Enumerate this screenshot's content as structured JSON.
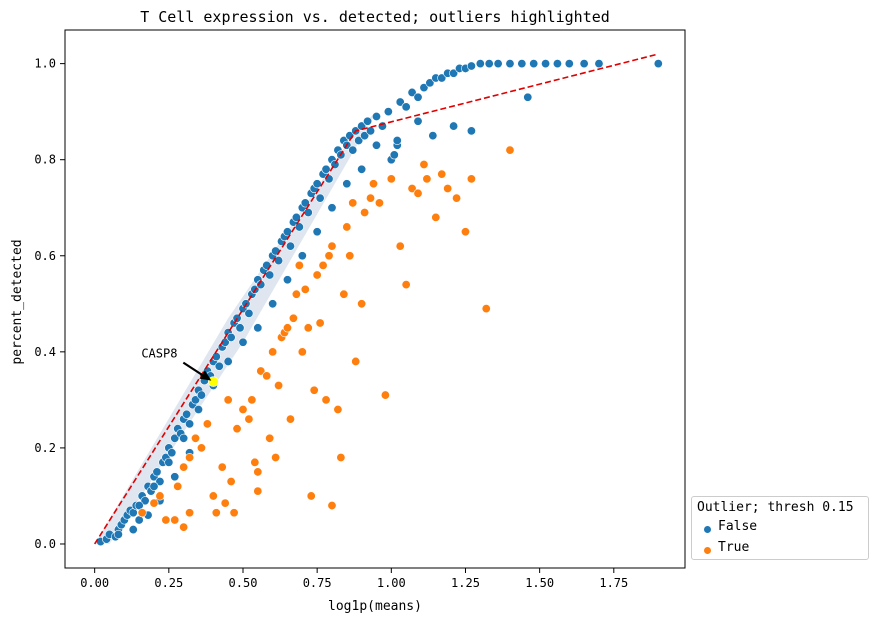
{
  "chart_data": {
    "type": "scatter",
    "title": "T Cell expression vs. detected; outliers highlighted",
    "xlabel": "log1p(means)",
    "ylabel": "percent_detected",
    "xlim": [
      -0.1,
      1.99
    ],
    "ylim": [
      -0.05,
      1.07
    ],
    "xticks": [
      0.0,
      0.25,
      0.5,
      0.75,
      1.0,
      1.25,
      1.5,
      1.75
    ],
    "xtick_labels": [
      "0.00",
      "0.25",
      "0.50",
      "0.75",
      "1.00",
      "1.25",
      "1.50",
      "1.75"
    ],
    "yticks": [
      0.0,
      0.2,
      0.4,
      0.6,
      0.8,
      1.0
    ],
    "ytick_labels": [
      "0.0",
      "0.2",
      "0.4",
      "0.6",
      "0.8",
      "1.0"
    ],
    "grid": false,
    "legend": {
      "title": "Outlier; thresh 0.15",
      "placement": "outside-bottom-right",
      "entries": [
        {
          "label": "False",
          "color": "#1f77b4"
        },
        {
          "label": "True",
          "color": "#ff7f0e"
        }
      ]
    },
    "series": [
      {
        "name": "False",
        "color": "#1f77b4",
        "points": [
          [
            0.02,
            0.005
          ],
          [
            0.04,
            0.01
          ],
          [
            0.05,
            0.02
          ],
          [
            0.07,
            0.015
          ],
          [
            0.08,
            0.03
          ],
          [
            0.09,
            0.04
          ],
          [
            0.1,
            0.05
          ],
          [
            0.11,
            0.06
          ],
          [
            0.12,
            0.07
          ],
          [
            0.13,
            0.065
          ],
          [
            0.14,
            0.08
          ],
          [
            0.15,
            0.05
          ],
          [
            0.16,
            0.1
          ],
          [
            0.17,
            0.09
          ],
          [
            0.18,
            0.12
          ],
          [
            0.19,
            0.11
          ],
          [
            0.2,
            0.14
          ],
          [
            0.21,
            0.15
          ],
          [
            0.22,
            0.13
          ],
          [
            0.23,
            0.17
          ],
          [
            0.24,
            0.18
          ],
          [
            0.25,
            0.2
          ],
          [
            0.26,
            0.19
          ],
          [
            0.27,
            0.22
          ],
          [
            0.28,
            0.24
          ],
          [
            0.29,
            0.23
          ],
          [
            0.3,
            0.26
          ],
          [
            0.31,
            0.27
          ],
          [
            0.32,
            0.25
          ],
          [
            0.33,
            0.29
          ],
          [
            0.34,
            0.3
          ],
          [
            0.35,
            0.32
          ],
          [
            0.36,
            0.31
          ],
          [
            0.37,
            0.34
          ],
          [
            0.38,
            0.36
          ],
          [
            0.39,
            0.35
          ],
          [
            0.4,
            0.38
          ],
          [
            0.41,
            0.39
          ],
          [
            0.42,
            0.37
          ],
          [
            0.43,
            0.41
          ],
          [
            0.44,
            0.42
          ],
          [
            0.45,
            0.44
          ],
          [
            0.46,
            0.43
          ],
          [
            0.47,
            0.46
          ],
          [
            0.48,
            0.47
          ],
          [
            0.49,
            0.45
          ],
          [
            0.5,
            0.49
          ],
          [
            0.51,
            0.5
          ],
          [
            0.52,
            0.48
          ],
          [
            0.53,
            0.52
          ],
          [
            0.54,
            0.53
          ],
          [
            0.55,
            0.55
          ],
          [
            0.56,
            0.54
          ],
          [
            0.57,
            0.57
          ],
          [
            0.58,
            0.58
          ],
          [
            0.59,
            0.56
          ],
          [
            0.6,
            0.6
          ],
          [
            0.61,
            0.61
          ],
          [
            0.62,
            0.59
          ],
          [
            0.63,
            0.63
          ],
          [
            0.64,
            0.64
          ],
          [
            0.65,
            0.65
          ],
          [
            0.66,
            0.62
          ],
          [
            0.67,
            0.67
          ],
          [
            0.68,
            0.68
          ],
          [
            0.69,
            0.66
          ],
          [
            0.7,
            0.7
          ],
          [
            0.71,
            0.71
          ],
          [
            0.72,
            0.69
          ],
          [
            0.73,
            0.73
          ],
          [
            0.74,
            0.74
          ],
          [
            0.75,
            0.75
          ],
          [
            0.76,
            0.72
          ],
          [
            0.77,
            0.77
          ],
          [
            0.78,
            0.78
          ],
          [
            0.79,
            0.76
          ],
          [
            0.8,
            0.8
          ],
          [
            0.81,
            0.79
          ],
          [
            0.82,
            0.82
          ],
          [
            0.83,
            0.81
          ],
          [
            0.84,
            0.84
          ],
          [
            0.85,
            0.83
          ],
          [
            0.86,
            0.85
          ],
          [
            0.87,
            0.82
          ],
          [
            0.88,
            0.86
          ],
          [
            0.89,
            0.84
          ],
          [
            0.9,
            0.87
          ],
          [
            0.91,
            0.85
          ],
          [
            0.92,
            0.88
          ],
          [
            0.93,
            0.86
          ],
          [
            0.95,
            0.89
          ],
          [
            0.97,
            0.87
          ],
          [
            0.99,
            0.9
          ],
          [
            1.0,
            0.8
          ],
          [
            1.01,
            0.81
          ],
          [
            1.02,
            0.83
          ],
          [
            1.03,
            0.92
          ],
          [
            1.05,
            0.91
          ],
          [
            1.07,
            0.94
          ],
          [
            1.09,
            0.93
          ],
          [
            1.11,
            0.95
          ],
          [
            1.13,
            0.96
          ],
          [
            1.15,
            0.97
          ],
          [
            1.17,
            0.97
          ],
          [
            1.19,
            0.98
          ],
          [
            1.21,
            0.98
          ],
          [
            1.23,
            0.99
          ],
          [
            1.25,
            0.99
          ],
          [
            1.27,
            0.995
          ],
          [
            1.3,
            1.0
          ],
          [
            1.33,
            1.0
          ],
          [
            1.36,
            1.0
          ],
          [
            1.4,
            1.0
          ],
          [
            1.44,
            1.0
          ],
          [
            1.48,
            1.0
          ],
          [
            1.52,
            1.0
          ],
          [
            1.56,
            1.0
          ],
          [
            1.6,
            1.0
          ],
          [
            1.65,
            1.0
          ],
          [
            1.7,
            1.0
          ],
          [
            1.9,
            1.0
          ],
          [
            1.27,
            0.86
          ],
          [
            1.46,
            0.93
          ],
          [
            1.21,
            0.87
          ],
          [
            1.14,
            0.85
          ],
          [
            1.09,
            0.88
          ],
          [
            0.95,
            0.83
          ],
          [
            1.02,
            0.84
          ],
          [
            0.9,
            0.78
          ],
          [
            0.85,
            0.75
          ],
          [
            0.8,
            0.7
          ],
          [
            0.75,
            0.65
          ],
          [
            0.7,
            0.6
          ],
          [
            0.65,
            0.55
          ],
          [
            0.6,
            0.5
          ],
          [
            0.55,
            0.45
          ],
          [
            0.5,
            0.42
          ],
          [
            0.45,
            0.38
          ],
          [
            0.4,
            0.33
          ],
          [
            0.35,
            0.28
          ],
          [
            0.3,
            0.22
          ],
          [
            0.25,
            0.17
          ],
          [
            0.2,
            0.12
          ],
          [
            0.15,
            0.08
          ],
          [
            0.13,
            0.03
          ],
          [
            0.18,
            0.06
          ],
          [
            0.08,
            0.02
          ],
          [
            0.22,
            0.09
          ],
          [
            0.27,
            0.14
          ],
          [
            0.32,
            0.19
          ]
        ]
      },
      {
        "name": "True",
        "color": "#ff7f0e",
        "points": [
          [
            0.16,
            0.065
          ],
          [
            0.2,
            0.085
          ],
          [
            0.22,
            0.1
          ],
          [
            0.24,
            0.05
          ],
          [
            0.27,
            0.05
          ],
          [
            0.3,
            0.035
          ],
          [
            0.32,
            0.065
          ],
          [
            0.28,
            0.12
          ],
          [
            0.3,
            0.16
          ],
          [
            0.32,
            0.18
          ],
          [
            0.34,
            0.22
          ],
          [
            0.36,
            0.2
          ],
          [
            0.38,
            0.25
          ],
          [
            0.4,
            0.1
          ],
          [
            0.41,
            0.065
          ],
          [
            0.43,
            0.16
          ],
          [
            0.44,
            0.085
          ],
          [
            0.46,
            0.13
          ],
          [
            0.47,
            0.065
          ],
          [
            0.45,
            0.3
          ],
          [
            0.48,
            0.24
          ],
          [
            0.5,
            0.28
          ],
          [
            0.52,
            0.26
          ],
          [
            0.53,
            0.3
          ],
          [
            0.54,
            0.17
          ],
          [
            0.55,
            0.11
          ],
          [
            0.55,
            0.15
          ],
          [
            0.56,
            0.36
          ],
          [
            0.58,
            0.35
          ],
          [
            0.59,
            0.22
          ],
          [
            0.6,
            0.4
          ],
          [
            0.61,
            0.18
          ],
          [
            0.62,
            0.33
          ],
          [
            0.63,
            0.43
          ],
          [
            0.64,
            0.44
          ],
          [
            0.65,
            0.45
          ],
          [
            0.66,
            0.26
          ],
          [
            0.67,
            0.47
          ],
          [
            0.68,
            0.52
          ],
          [
            0.7,
            0.4
          ],
          [
            0.71,
            0.53
          ],
          [
            0.72,
            0.45
          ],
          [
            0.73,
            0.1
          ],
          [
            0.74,
            0.32
          ],
          [
            0.75,
            0.56
          ],
          [
            0.76,
            0.46
          ],
          [
            0.77,
            0.58
          ],
          [
            0.78,
            0.3
          ],
          [
            0.79,
            0.6
          ],
          [
            0.8,
            0.08
          ],
          [
            0.8,
            0.62
          ],
          [
            0.82,
            0.28
          ],
          [
            0.83,
            0.18
          ],
          [
            0.84,
            0.52
          ],
          [
            0.85,
            0.66
          ],
          [
            0.86,
            0.6
          ],
          [
            0.88,
            0.38
          ],
          [
            0.9,
            0.5
          ],
          [
            0.91,
            0.69
          ],
          [
            0.94,
            0.75
          ],
          [
            0.96,
            0.71
          ],
          [
            0.98,
            0.31
          ],
          [
            1.0,
            0.76
          ],
          [
            1.03,
            0.62
          ],
          [
            1.05,
            0.54
          ],
          [
            1.07,
            0.74
          ],
          [
            1.09,
            0.73
          ],
          [
            1.12,
            0.76
          ],
          [
            1.15,
            0.68
          ],
          [
            1.17,
            0.77
          ],
          [
            1.19,
            0.74
          ],
          [
            1.22,
            0.72
          ],
          [
            1.25,
            0.65
          ],
          [
            1.32,
            0.49
          ],
          [
            1.4,
            0.82
          ],
          [
            1.27,
            0.76
          ],
          [
            1.11,
            0.79
          ],
          [
            0.93,
            0.72
          ],
          [
            0.87,
            0.71
          ],
          [
            0.69,
            0.58
          ]
        ]
      }
    ],
    "reference_line": {
      "color": "#e00000",
      "points": [
        [
          0.0,
          0.0
        ],
        [
          0.88,
          0.86
        ],
        [
          1.9,
          1.02
        ]
      ]
    },
    "highlight": {
      "label": "CASP8",
      "x": 0.4,
      "y": 0.338,
      "color": "#ffff00"
    }
  }
}
